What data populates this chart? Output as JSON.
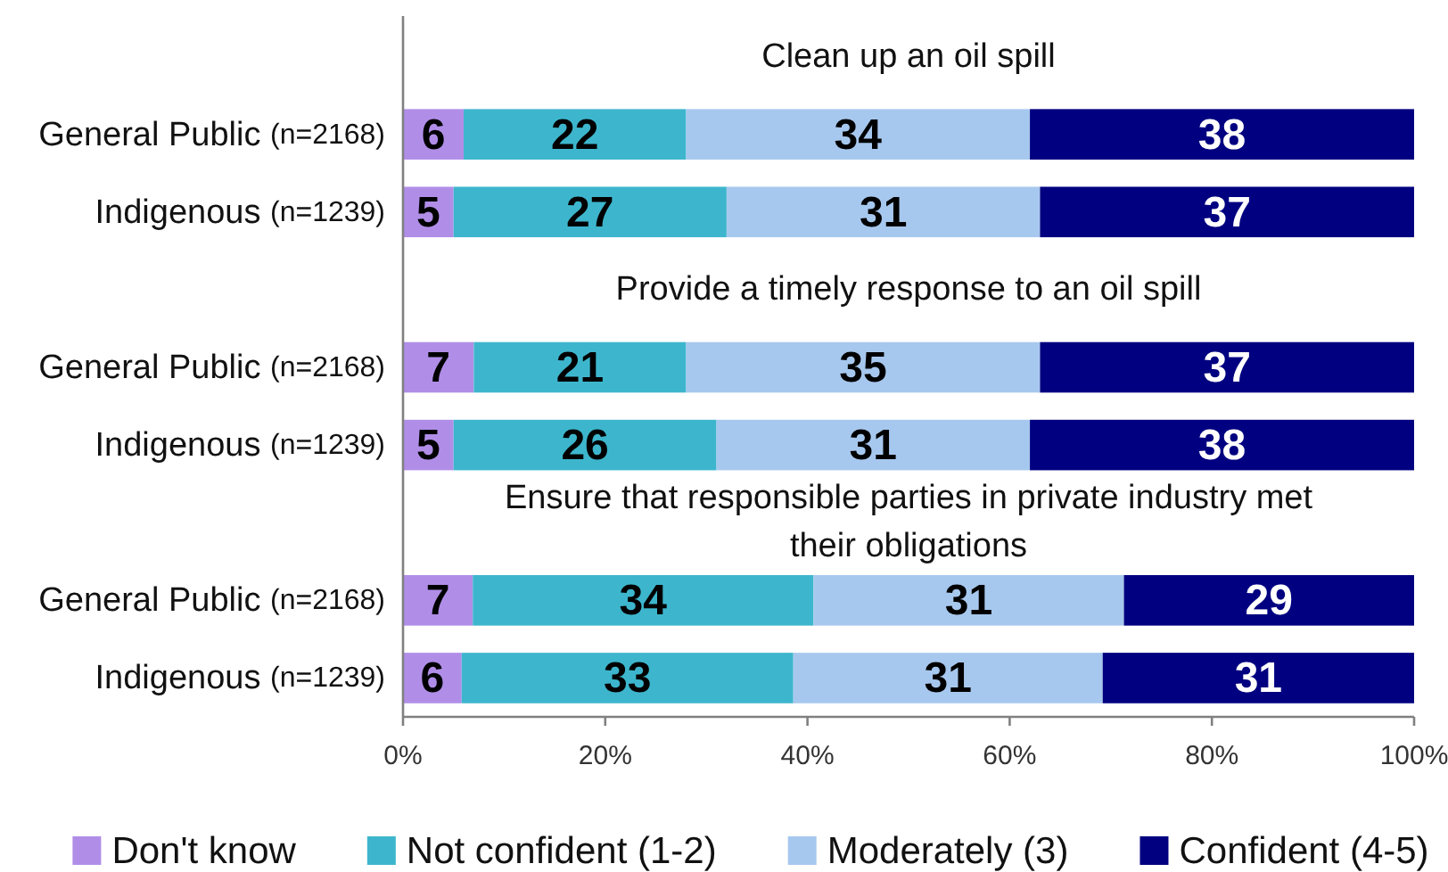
{
  "chart_data": {
    "type": "bar",
    "orientation": "horizontal",
    "stacked": true,
    "categories": [
      "General Public (n=2168)",
      "Indigenous (n=1239)",
      "General Public (n=2168)",
      "Indigenous (n=1239)",
      "General Public (n=2168)",
      "Indigenous (n=1239)"
    ],
    "annotations": [
      "Clean up an oil spill",
      "Provide a timely response to an oil spill",
      "Ensure that responsible parties in private industry met their obligations"
    ],
    "series": [
      {
        "name": "Don't know",
        "color": "#b08ee8",
        "values": [
          6,
          5,
          7,
          5,
          6.9,
          5.8
        ],
        "value_labels": [
          "6",
          "5",
          "7",
          "5",
          "7",
          "6"
        ]
      },
      {
        "name": "Not confident (1-2)",
        "color": "#3db6cd",
        "values": [
          22,
          27,
          21,
          26,
          33.7,
          32.8
        ],
        "value_labels": [
          "22",
          "27",
          "21",
          "26",
          "34",
          "33"
        ]
      },
      {
        "name": "Moderately (3)",
        "color": "#a7c8ee",
        "values": [
          34,
          31,
          35,
          31,
          30.7,
          30.6
        ],
        "value_labels": [
          "34",
          "31",
          "35",
          "31",
          "31",
          "31"
        ]
      },
      {
        "name": "Confident (4-5)",
        "color": "#000080",
        "values": [
          38,
          37,
          37,
          38,
          28.7,
          30.8
        ],
        "value_labels": [
          "38",
          "37",
          "37",
          "38",
          "29",
          "31"
        ]
      }
    ],
    "xlim": [
      0,
      100
    ],
    "xticks": [
      {
        "value": 0,
        "label": "0%"
      },
      {
        "value": 20,
        "label": "20%"
      },
      {
        "value": 40,
        "label": "40%"
      },
      {
        "value": 60,
        "label": "60%"
      },
      {
        "value": 80,
        "label": "80%"
      },
      {
        "value": 100,
        "label": "100%"
      }
    ],
    "legend": "bottom"
  }
}
